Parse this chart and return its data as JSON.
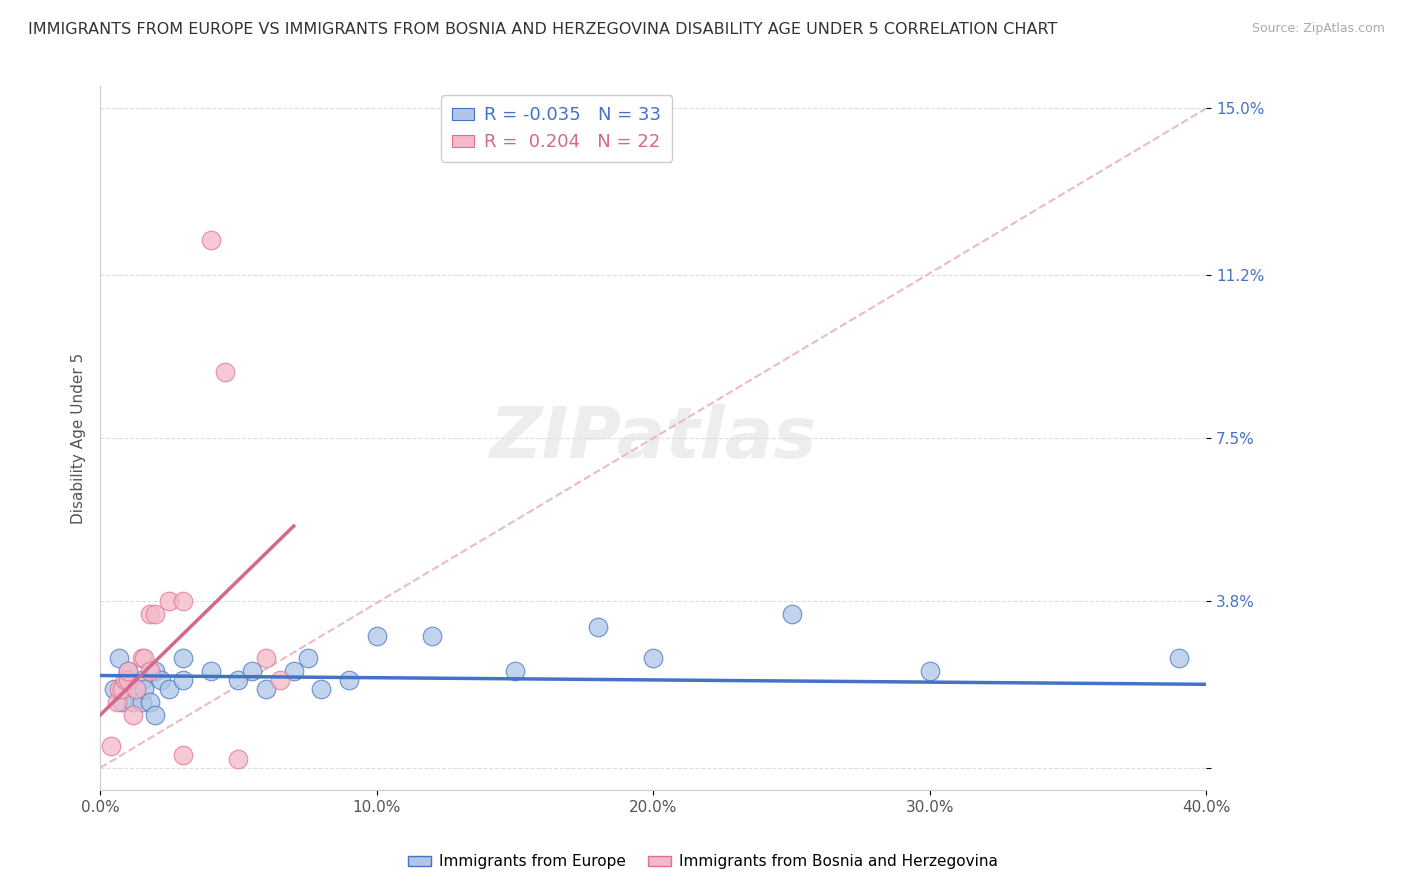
{
  "title": "IMMIGRANTS FROM EUROPE VS IMMIGRANTS FROM BOSNIA AND HERZEGOVINA DISABILITY AGE UNDER 5 CORRELATION CHART",
  "source": "Source: ZipAtlas.com",
  "ylabel": "Disability Age Under 5",
  "xlim": [
    0.0,
    0.4
  ],
  "ylim": [
    -0.005,
    0.155
  ],
  "yticks": [
    0.0,
    0.038,
    0.075,
    0.112,
    0.15
  ],
  "ytick_labels": [
    "",
    "3.8%",
    "7.5%",
    "11.2%",
    "15.0%"
  ],
  "xticks": [
    0.0,
    0.1,
    0.2,
    0.3,
    0.4
  ],
  "xtick_labels": [
    "0.0%",
    "10.0%",
    "20.0%",
    "30.0%",
    "40.0%"
  ],
  "blue_r": "-0.035",
  "blue_n": "33",
  "pink_r": "0.204",
  "pink_n": "22",
  "blue_fill_color": "#aec6e8",
  "pink_fill_color": "#f5b8c8",
  "blue_edge_color": "#4472c4",
  "pink_edge_color": "#e07090",
  "blue_line_color": "#4472c4",
  "pink_line_color": "#d4688a",
  "diag_line_color": "#e8b4c0",
  "legend_label_blue": "Immigrants from Europe",
  "legend_label_pink": "Immigrants from Bosnia and Herzegovina",
  "blue_scatter_x": [
    0.005,
    0.007,
    0.008,
    0.01,
    0.01,
    0.012,
    0.013,
    0.015,
    0.015,
    0.016,
    0.018,
    0.02,
    0.02,
    0.022,
    0.025,
    0.03,
    0.03,
    0.04,
    0.05,
    0.055,
    0.06,
    0.07,
    0.075,
    0.08,
    0.09,
    0.1,
    0.12,
    0.15,
    0.18,
    0.2,
    0.25,
    0.3,
    0.39
  ],
  "blue_scatter_y": [
    0.018,
    0.025,
    0.015,
    0.02,
    0.022,
    0.015,
    0.018,
    0.02,
    0.015,
    0.018,
    0.015,
    0.012,
    0.022,
    0.02,
    0.018,
    0.02,
    0.025,
    0.022,
    0.02,
    0.022,
    0.018,
    0.022,
    0.025,
    0.018,
    0.02,
    0.03,
    0.03,
    0.022,
    0.032,
    0.025,
    0.035,
    0.022,
    0.025
  ],
  "pink_scatter_x": [
    0.004,
    0.006,
    0.007,
    0.008,
    0.009,
    0.01,
    0.01,
    0.012,
    0.013,
    0.015,
    0.016,
    0.018,
    0.018,
    0.02,
    0.025,
    0.03,
    0.04,
    0.045,
    0.05,
    0.06,
    0.065,
    0.03
  ],
  "pink_scatter_y": [
    0.005,
    0.015,
    0.018,
    0.018,
    0.02,
    0.02,
    0.022,
    0.012,
    0.018,
    0.025,
    0.025,
    0.022,
    0.035,
    0.035,
    0.038,
    0.038,
    0.12,
    0.09,
    0.002,
    0.025,
    0.02,
    0.003
  ],
  "background_color": "#ffffff",
  "title_fontsize": 11.5,
  "axis_label_fontsize": 11,
  "tick_fontsize": 11
}
